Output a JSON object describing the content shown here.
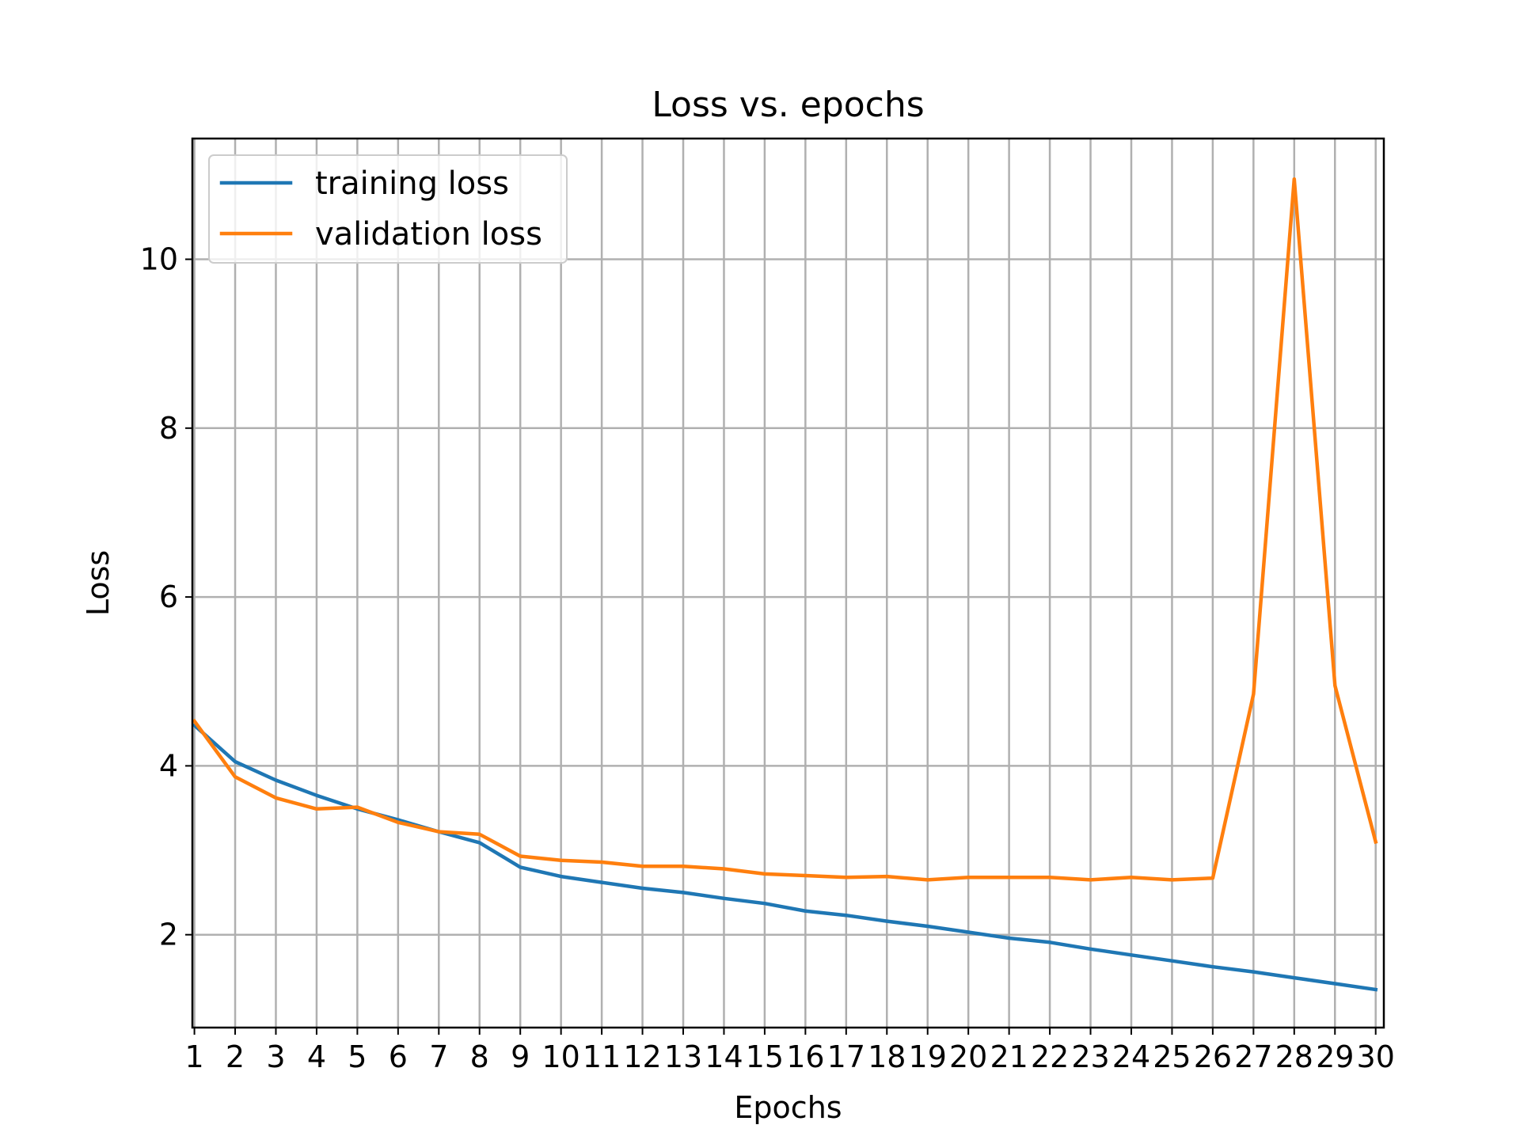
{
  "chart_data": {
    "type": "line",
    "title": "Loss vs. epochs",
    "xlabel": "Epochs",
    "ylabel": "Loss",
    "x": [
      1,
      2,
      3,
      4,
      5,
      6,
      7,
      8,
      9,
      10,
      11,
      12,
      13,
      14,
      15,
      16,
      17,
      18,
      19,
      20,
      21,
      22,
      23,
      24,
      25,
      26,
      27,
      28,
      29,
      30
    ],
    "x_tick_labels": [
      "1",
      "2",
      "3",
      "4",
      "5",
      "6",
      "7",
      "8",
      "9",
      "10",
      "11",
      "12",
      "13",
      "14",
      "15",
      "16",
      "17",
      "18",
      "19",
      "20",
      "21",
      "22",
      "23",
      "24",
      "25",
      "26",
      "27",
      "28",
      "29",
      "30"
    ],
    "y_ticks": [
      2,
      4,
      6,
      8,
      10
    ],
    "y_tick_labels": [
      "2",
      "4",
      "6",
      "8",
      "10"
    ],
    "xlim": [
      0.95,
      30.2
    ],
    "ylim": [
      0.9,
      11.43
    ],
    "grid": true,
    "legend": "top-left",
    "series": [
      {
        "name": "training loss",
        "color": "#1f77b4",
        "values": [
          4.48,
          4.05,
          3.83,
          3.65,
          3.49,
          3.36,
          3.22,
          3.09,
          2.8,
          2.69,
          2.62,
          2.55,
          2.5,
          2.43,
          2.37,
          2.28,
          2.23,
          2.16,
          2.1,
          2.03,
          1.96,
          1.91,
          1.83,
          1.76,
          1.69,
          1.62,
          1.56,
          1.49,
          1.42,
          1.35
        ]
      },
      {
        "name": "validation loss",
        "color": "#ff7f0e",
        "values": [
          4.53,
          3.87,
          3.62,
          3.49,
          3.51,
          3.33,
          3.22,
          3.19,
          2.93,
          2.88,
          2.86,
          2.81,
          2.81,
          2.78,
          2.72,
          2.7,
          2.68,
          2.69,
          2.65,
          2.68,
          2.68,
          2.68,
          2.65,
          2.68,
          2.65,
          2.67,
          4.85,
          10.95,
          4.95,
          3.1
        ]
      }
    ]
  }
}
